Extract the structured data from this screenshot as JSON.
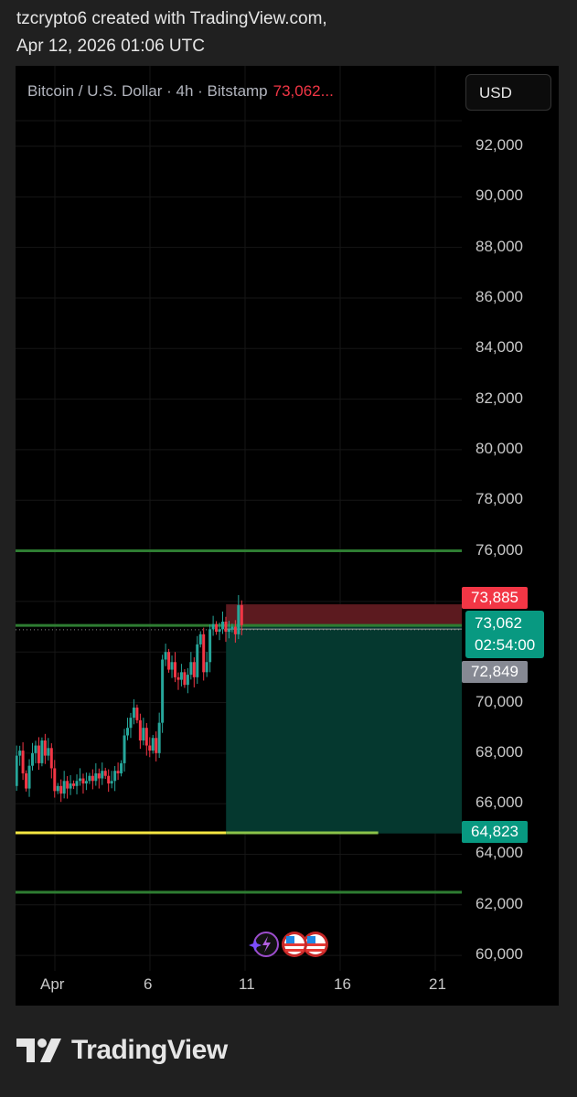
{
  "caption": {
    "line1": "tzcrypto6 created with TradingView.com,",
    "line2": "Apr 12, 2026 01:06 UTC"
  },
  "legend": {
    "symbol": "Bitcoin / U.S. Dollar · 4h · Bitstamp",
    "price": "73,062..."
  },
  "currency_button": "USD",
  "footer": {
    "brand": "TradingView"
  },
  "colors": {
    "up": "#26a69a",
    "down": "#f23645",
    "background": "#000000",
    "hline": "#2e7d32",
    "yellow": "#f5e642",
    "stop_zone": "#5c1a1f",
    "target_zone": "#05382f"
  },
  "chart_data": {
    "type": "candlestick",
    "interval": "4h",
    "y_ticks": [
      92000,
      90000,
      88000,
      86000,
      84000,
      82000,
      80000,
      78000,
      76000,
      70000,
      68000,
      66000,
      64000,
      62000,
      60000
    ],
    "y_tick_labels": [
      "92,000",
      "90,000",
      "88,000",
      "86,000",
      "84,000",
      "82,000",
      "80,000",
      "78,000",
      "76,000",
      "70,000",
      "68,000",
      "66,000",
      "64,000",
      "62,000",
      "60,000"
    ],
    "ylim": [
      59500,
      93000
    ],
    "x_ticks": [
      {
        "day": 1,
        "label": "Apr"
      },
      {
        "day": 6,
        "label": "6"
      },
      {
        "day": 11,
        "label": "11"
      },
      {
        "day": 16,
        "label": "16"
      },
      {
        "day": 21,
        "label": "21"
      }
    ],
    "first_candle_day": -1,
    "closes": [
      66900,
      67300,
      67700,
      67100,
      67800,
      67400,
      66700,
      67900,
      68100,
      67200,
      66600,
      67500,
      68000,
      68300,
      67600,
      68500,
      67900,
      68200,
      67400,
      66500,
      66700,
      66400,
      66900,
      66600,
      66800,
      66700,
      66900,
      67000,
      66800,
      66900,
      67100,
      66900,
      67200,
      67000,
      67300,
      67100,
      66800,
      66900,
      67300,
      67200,
      67600,
      68700,
      69000,
      69400,
      69800,
      69300,
      68500,
      69000,
      68300,
      68100,
      68600,
      68000,
      69200,
      71700,
      72000,
      71300,
      71600,
      71000,
      70900,
      71200,
      70700,
      71100,
      71600,
      71000,
      72300,
      72700,
      71200,
      71600,
      72900,
      73100,
      72800,
      72900,
      73200,
      72800,
      72900,
      73000,
      72700,
      73850,
      73062
    ],
    "horizontal_lines": [
      76000,
      73050,
      62500
    ],
    "support_line": {
      "price": 64850,
      "from_day": -1,
      "to_day": 18
    },
    "position": {
      "entry": 73050,
      "stop": 73885,
      "target": 64823,
      "from_day": 10,
      "to_day": 22.4
    },
    "price_tags": [
      {
        "label": "73,885",
        "price": 73885,
        "color": "#f23645"
      },
      {
        "label": "73,062",
        "sub": "02:54:00",
        "price": 73062,
        "color": "#089981"
      },
      {
        "label": "72,849",
        "price": 72849,
        "color": "#868993"
      },
      {
        "label": "64,823",
        "price": 64823,
        "color": "#089981"
      }
    ],
    "event_icons": [
      "sparkle-lightning-icon",
      "us-flag-icon",
      "us-flag-icon"
    ]
  }
}
